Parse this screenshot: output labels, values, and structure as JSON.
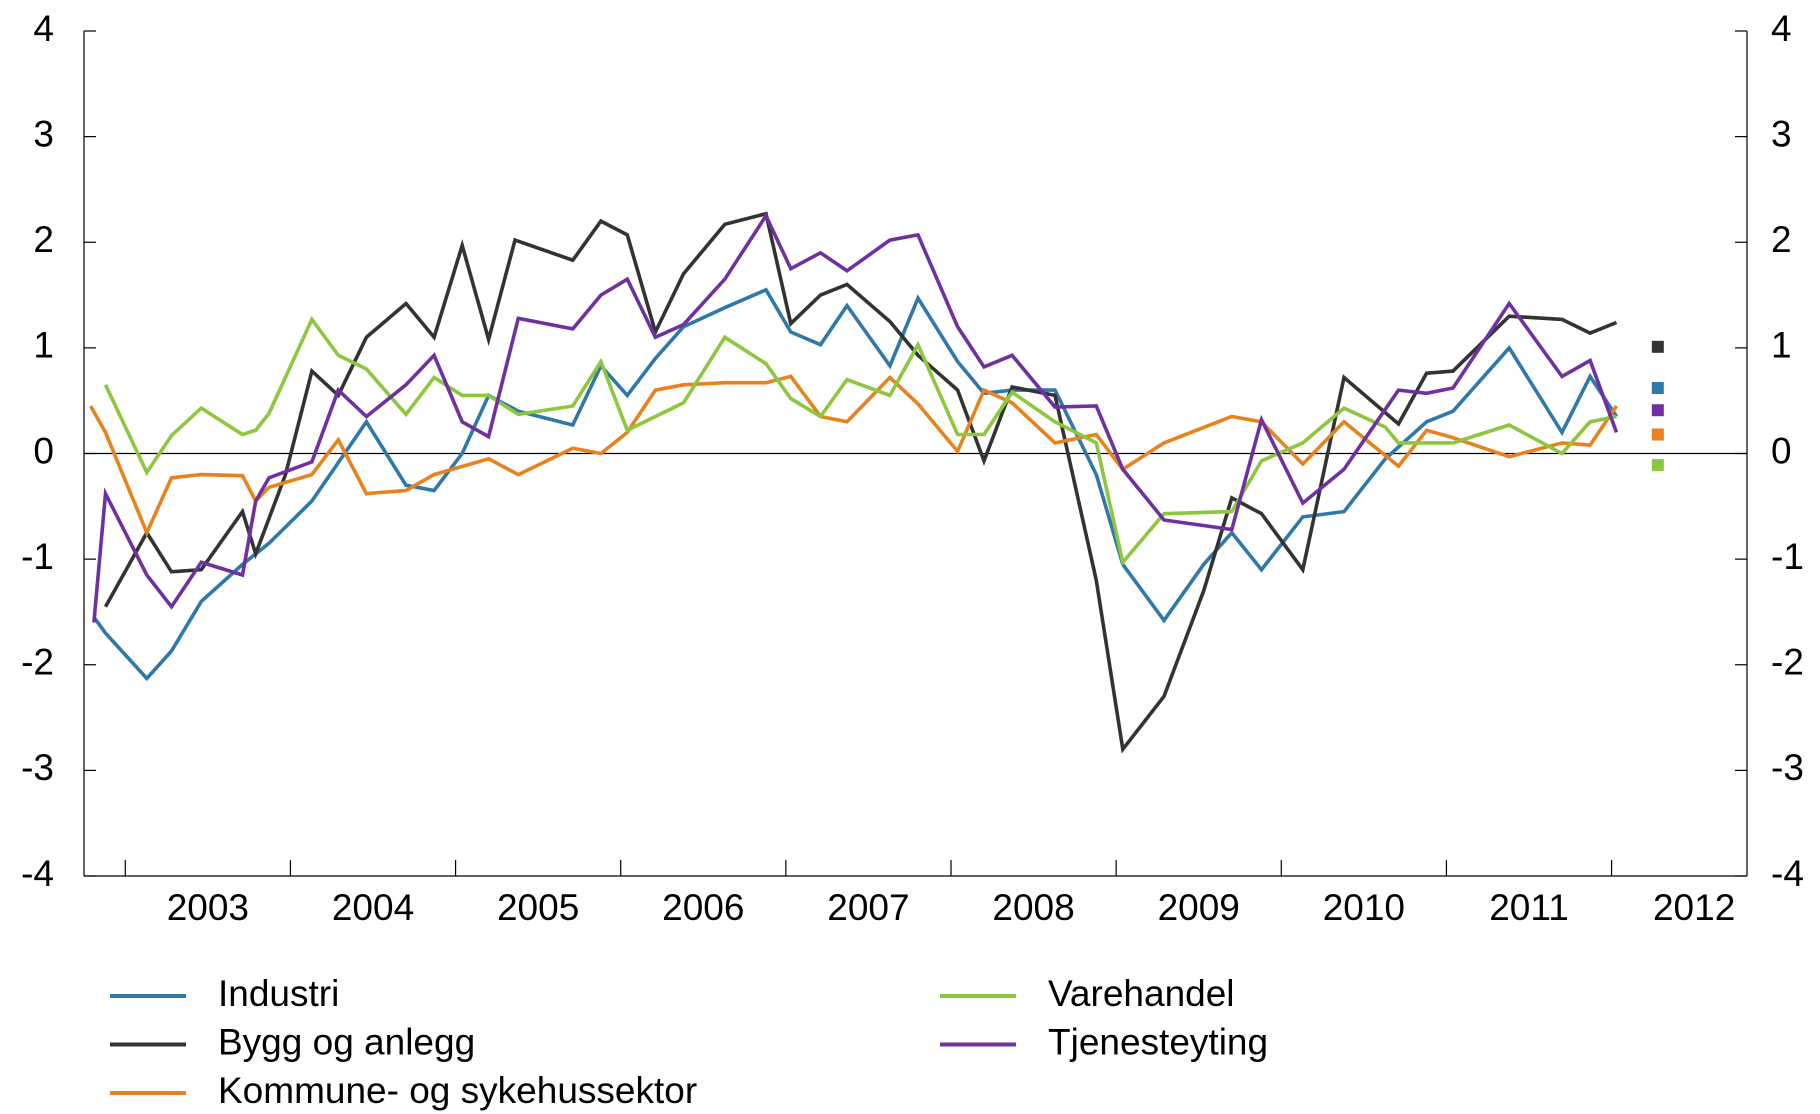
{
  "chart_data": {
    "type": "line",
    "xlim": [
      2002.75,
      2012.82
    ],
    "xticks": [
      2003,
      2004,
      2005,
      2006,
      2007,
      2008,
      2009,
      2010,
      2011,
      2012
    ],
    "ylim": [
      -4,
      4
    ],
    "yticks": [
      -4,
      -3,
      -2,
      -1,
      0,
      1,
      2,
      3,
      4
    ],
    "series": [
      {
        "name": "Industri",
        "color": "#2f78aa",
        "x": [
          2002.81,
          2002.88,
          2003.13,
          2003.28,
          2003.46,
          2003.71,
          2003.87,
          2004.13,
          2004.46,
          2004.7,
          2004.87,
          2005.04,
          2005.2,
          2005.38,
          2005.71,
          2005.88,
          2006.04,
          2006.21,
          2006.38,
          2006.63,
          2006.88,
          2007.03,
          2007.21,
          2007.37,
          2007.63,
          2007.8,
          2008.04,
          2008.2,
          2008.37,
          2008.63,
          2008.88,
          2009.04,
          2009.29,
          2009.53,
          2009.7,
          2009.88,
          2010.13,
          2010.38,
          2010.63,
          2010.88,
          2011.04,
          2011.38,
          2011.7,
          2011.87,
          2012.03
        ],
        "values": [
          -1.55,
          -1.7,
          -2.13,
          -1.87,
          -1.4,
          -1.05,
          -0.85,
          -0.45,
          0.3,
          -0.3,
          -0.35,
          0,
          0.55,
          0.4,
          0.27,
          0.83,
          0.55,
          0.9,
          1.2,
          1.38,
          1.55,
          1.15,
          1.03,
          1.4,
          0.83,
          1.47,
          0.87,
          0.57,
          0.6,
          0.6,
          -0.2,
          -1.05,
          -1.58,
          -1.05,
          -0.75,
          -1.1,
          -0.6,
          -0.55,
          -0.05,
          0.3,
          0.4,
          1.0,
          0.2,
          0.73,
          0.35
        ],
        "point": {
          "x": 2012.28,
          "value": 0.62
        }
      },
      {
        "name": "Bygg og anlegg",
        "color": "#333333",
        "x": [
          2002.88,
          2003.13,
          2003.28,
          2003.46,
          2003.71,
          2003.79,
          2003.97,
          2004.13,
          2004.29,
          2004.46,
          2004.7,
          2004.87,
          2005.04,
          2005.2,
          2005.36,
          2005.71,
          2005.88,
          2006.04,
          2006.21,
          2006.38,
          2006.63,
          2006.88,
          2007.03,
          2007.21,
          2007.37,
          2007.63,
          2007.8,
          2008.04,
          2008.2,
          2008.37,
          2008.63,
          2008.88,
          2009.04,
          2009.29,
          2009.53,
          2009.7,
          2009.88,
          2010.13,
          2010.38,
          2010.71,
          2010.88,
          2011.04,
          2011.38,
          2011.7,
          2011.87,
          2012.03
        ],
        "values": [
          -1.45,
          -0.75,
          -1.12,
          -1.1,
          -0.55,
          -0.95,
          -0.2,
          0.78,
          0.55,
          1.1,
          1.42,
          1.1,
          1.97,
          1.08,
          2.02,
          1.83,
          2.2,
          2.07,
          1.15,
          1.7,
          2.17,
          2.27,
          1.23,
          1.5,
          1.6,
          1.25,
          0.93,
          0.6,
          -0.07,
          0.63,
          0.55,
          -1.2,
          -2.8,
          -2.3,
          -1.3,
          -0.42,
          -0.57,
          -1.1,
          0.72,
          0.28,
          0.76,
          0.78,
          1.3,
          1.27,
          1.14,
          1.24
        ],
        "point": {
          "x": 2012.28,
          "value": 1.01
        }
      },
      {
        "name": "Kommune- og sykehussektor",
        "color": "#e8821e",
        "x": [
          2002.79,
          2002.88,
          2003.13,
          2003.28,
          2003.46,
          2003.71,
          2003.79,
          2003.87,
          2004.13,
          2004.29,
          2004.46,
          2004.7,
          2004.87,
          2005.2,
          2005.38,
          2005.71,
          2005.88,
          2006.04,
          2006.21,
          2006.38,
          2006.63,
          2006.88,
          2007.03,
          2007.21,
          2007.37,
          2007.63,
          2007.8,
          2008.04,
          2008.2,
          2008.37,
          2008.63,
          2008.88,
          2009.04,
          2009.29,
          2009.7,
          2009.88,
          2010.13,
          2010.38,
          2010.71,
          2010.88,
          2011.04,
          2011.38,
          2011.7,
          2011.87,
          2012.03
        ],
        "values": [
          0.45,
          0.2,
          -0.75,
          -0.23,
          -0.2,
          -0.21,
          -0.45,
          -0.32,
          -0.2,
          0.13,
          -0.38,
          -0.35,
          -0.2,
          -0.05,
          -0.2,
          0.05,
          0,
          0.2,
          0.6,
          0.65,
          0.67,
          0.67,
          0.73,
          0.35,
          0.3,
          0.72,
          0.47,
          0.02,
          0.6,
          0.48,
          0.1,
          0.18,
          -0.15,
          0.1,
          0.35,
          0.3,
          -0.1,
          0.3,
          -0.12,
          0.22,
          0.15,
          -0.03,
          0.1,
          0.08,
          0.45
        ],
        "point": {
          "x": 2012.28,
          "value": 0.18
        }
      },
      {
        "name": "Varehandel",
        "color": "#8dc63f",
        "x": [
          2002.88,
          2003.13,
          2003.28,
          2003.46,
          2003.71,
          2003.79,
          2003.87,
          2004.13,
          2004.29,
          2004.46,
          2004.7,
          2004.87,
          2005.04,
          2005.2,
          2005.38,
          2005.71,
          2005.88,
          2006.04,
          2006.38,
          2006.63,
          2006.88,
          2007.03,
          2007.21,
          2007.37,
          2007.63,
          2007.8,
          2008.04,
          2008.2,
          2008.37,
          2008.63,
          2008.88,
          2009.04,
          2009.29,
          2009.7,
          2009.88,
          2010.13,
          2010.38,
          2010.63,
          2010.71,
          2011.04,
          2011.38,
          2011.7,
          2011.87,
          2012.03
        ],
        "values": [
          0.65,
          -0.18,
          0.17,
          0.43,
          0.18,
          0.22,
          0.38,
          1.27,
          0.93,
          0.8,
          0.37,
          0.72,
          0.55,
          0.55,
          0.37,
          0.45,
          0.87,
          0.22,
          0.48,
          1.1,
          0.85,
          0.52,
          0.35,
          0.7,
          0.55,
          1.03,
          0.18,
          0.18,
          0.58,
          0.3,
          0.1,
          -1.03,
          -0.57,
          -0.55,
          -0.07,
          0.1,
          0.43,
          0.25,
          0.1,
          0.1,
          0.27,
          0,
          0.3,
          0.35
        ],
        "point": {
          "x": 2012.28,
          "value": -0.11
        }
      },
      {
        "name": "Tjenesteyting",
        "color": "#7030a0",
        "x": [
          2002.81,
          2002.88,
          2003.13,
          2003.28,
          2003.46,
          2003.71,
          2003.79,
          2003.87,
          2004.13,
          2004.29,
          2004.46,
          2004.7,
          2004.87,
          2005.04,
          2005.2,
          2005.38,
          2005.71,
          2005.88,
          2006.04,
          2006.21,
          2006.38,
          2006.63,
          2006.88,
          2007.03,
          2007.21,
          2007.37,
          2007.63,
          2007.8,
          2008.04,
          2008.2,
          2008.37,
          2008.63,
          2008.88,
          2009.04,
          2009.29,
          2009.7,
          2009.88,
          2010.13,
          2010.38,
          2010.71,
          2010.88,
          2011.04,
          2011.38,
          2011.7,
          2011.87,
          2012.03
        ],
        "values": [
          -1.6,
          -0.38,
          -1.15,
          -1.45,
          -1.03,
          -1.15,
          -0.45,
          -0.23,
          -0.08,
          0.6,
          0.35,
          0.65,
          0.93,
          0.3,
          0.16,
          1.28,
          1.18,
          1.5,
          1.65,
          1.1,
          1.22,
          1.65,
          2.25,
          1.75,
          1.9,
          1.73,
          2.02,
          2.07,
          1.2,
          0.82,
          0.93,
          0.44,
          0.45,
          -0.15,
          -0.63,
          -0.72,
          0.32,
          -0.47,
          -0.15,
          0.6,
          0.57,
          0.62,
          1.42,
          0.73,
          0.88,
          0.2
        ],
        "point": {
          "x": 2012.28,
          "value": 0.41
        }
      }
    ]
  }
}
